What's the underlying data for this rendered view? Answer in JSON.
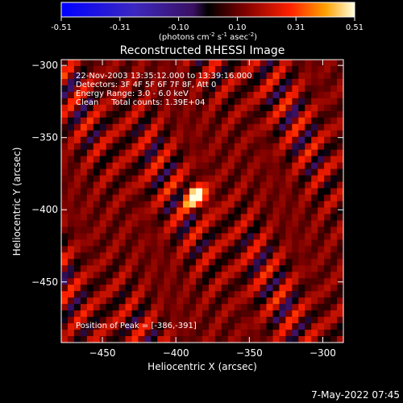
{
  "colorbar": {
    "ticks": [
      "-0.51",
      "-0.31",
      "-0.10",
      "0.10",
      "0.31",
      "0.51"
    ],
    "units_prefix": "(photons cm",
    "units_exp1": "-2",
    "units_mid": " s",
    "units_exp2": "-1",
    "units_mid2": " asec",
    "units_exp3": "-2",
    "units_suffix": ")"
  },
  "chart_data": {
    "type": "heatmap",
    "title": "Reconstructed RHESSI Image",
    "xlabel": "Heliocentric X (arcsec)",
    "ylabel": "Heliocentric Y (arcsec)",
    "xlim": [
      -478,
      -286
    ],
    "ylim": [
      -492,
      -296
    ],
    "x_ticks": [
      -450,
      -400,
      -350,
      -300
    ],
    "y_ticks": [
      -300,
      -350,
      -400,
      -450
    ],
    "x_tick_labels": [
      "−450",
      "−400",
      "−350",
      "−300"
    ],
    "y_tick_labels": [
      "−300",
      "−350",
      "−400",
      "−450"
    ],
    "color_range": [
      -0.51,
      0.51
    ],
    "peak": [
      -386,
      -391
    ],
    "annotations": [
      "22-Nov-2003 13:35:12.000 to 13:39:16.000",
      "Detectors: 3F 4F 5F 6F 7F 8F, Att 0",
      "Energy Range: 3.0 - 6.0 keV",
      "Clean     Total counts: 1.39E+04"
    ],
    "peak_label": "Position of Peak = [-386,-391]"
  },
  "footer": {
    "date": "7-May-2022 07:45"
  }
}
